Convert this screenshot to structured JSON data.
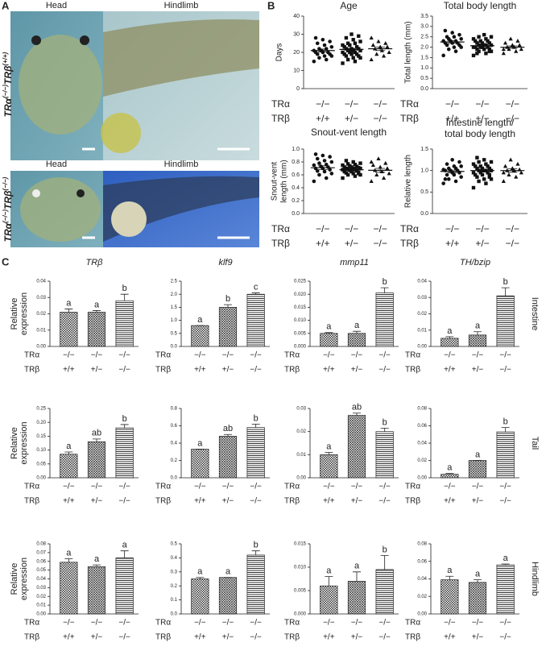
{
  "labels": {
    "a": "A",
    "b": "B",
    "c": "C"
  },
  "panel_a": {
    "rows": [
      {
        "columns": [
          "Head",
          "Hindlimb"
        ],
        "genotype": {
          "a": "TRα",
          "a_sup": "(−/−)",
          "b": "TRβ",
          "b_sup": "(+/+)"
        }
      },
      {
        "columns": [
          "Head",
          "Hindlimb"
        ],
        "genotype": {
          "a": "TRα",
          "a_sup": "(−/−)",
          "b": "TRβ",
          "b_sup": "(−/−)"
        }
      }
    ]
  },
  "panel_c": {
    "genes": [
      "TRβ",
      "klf9",
      "mmp11",
      "TH/bzip"
    ],
    "tissues": [
      "Intestine",
      "Tail",
      "Hindlimb"
    ]
  },
  "chart_data": [
    {
      "type": "dot",
      "title": "Age",
      "ylabel": "Days",
      "ylim": [
        0,
        40
      ],
      "yticks": [
        0,
        10,
        20,
        30,
        40
      ],
      "groups": [
        [
          15,
          16,
          17,
          18,
          18,
          19,
          19,
          20,
          20,
          20,
          21,
          21,
          22,
          22,
          23,
          24,
          25,
          26,
          27,
          28
        ],
        [
          14,
          15,
          16,
          17,
          17,
          18,
          18,
          19,
          19,
          19,
          20,
          20,
          20,
          21,
          21,
          21,
          22,
          22,
          22,
          23,
          23,
          24,
          24,
          25,
          25,
          26,
          27,
          28,
          29,
          30
        ],
        [
          16,
          18,
          19,
          20,
          21,
          22,
          23,
          23,
          24,
          25,
          26,
          28
        ]
      ],
      "means": [
        21,
        21.6,
        22
      ],
      "errors": [
        0.8,
        0.6,
        1.0
      ],
      "genotypes": [
        {
          "name": "TRα",
          "labels": [
            "−/−",
            "−/−",
            "−/−"
          ]
        },
        {
          "name": "TRβ",
          "labels": [
            "+/+",
            "+/−",
            "−/−"
          ]
        }
      ]
    },
    {
      "type": "dot",
      "title": "Total body length",
      "ylabel": "Total length (mm)",
      "ylim": [
        0,
        3.5
      ],
      "yticks": [
        {
          "value": 0,
          "label": "0.0"
        },
        0.5,
        {
          "value": 1,
          "label": "1.0"
        },
        1.5,
        {
          "value": 2,
          "label": "2.0"
        },
        2.5,
        {
          "value": 3,
          "label": "3.0"
        },
        3.5
      ],
      "groups": [
        [
          1.6,
          1.8,
          1.9,
          2.0,
          2.0,
          2.1,
          2.1,
          2.2,
          2.2,
          2.2,
          2.3,
          2.3,
          2.3,
          2.4,
          2.4,
          2.5,
          2.5,
          2.6,
          2.7,
          2.8
        ],
        [
          1.6,
          1.7,
          1.8,
          1.8,
          1.9,
          1.9,
          1.9,
          2.0,
          2.0,
          2.0,
          2.0,
          2.0,
          2.1,
          2.1,
          2.1,
          2.1,
          2.2,
          2.2,
          2.2,
          2.3,
          2.3,
          2.3,
          2.4,
          2.4,
          2.5,
          2.5,
          2.6,
          1.7,
          1.8,
          2.0
        ],
        [
          1.7,
          1.8,
          1.9,
          1.9,
          2.0,
          2.0,
          2.1,
          2.1,
          2.2,
          2.3,
          2.4,
          1.9
        ]
      ],
      "means": [
        2.25,
        2.07,
        2.0
      ],
      "errors": [
        0.07,
        0.04,
        0.06
      ],
      "genotypes": [
        {
          "name": "TRα",
          "labels": [
            "−/−",
            "−/−",
            "−/−"
          ]
        },
        {
          "name": "TRβ",
          "labels": [
            "+/+",
            "+/−",
            "−/−"
          ]
        }
      ]
    },
    {
      "type": "dot",
      "title": "Snout-vent length",
      "ylabel": [
        "Snout-vent",
        "length (mm)"
      ],
      "ylim": [
        0,
        1.0
      ],
      "yticks": [
        {
          "value": 0,
          "label": "0.0"
        },
        0.2,
        0.4,
        0.6,
        0.8,
        {
          "value": 1,
          "label": "1.0"
        }
      ],
      "groups": [
        [
          0.5,
          0.55,
          0.6,
          0.62,
          0.65,
          0.66,
          0.68,
          0.7,
          0.7,
          0.72,
          0.73,
          0.75,
          0.76,
          0.78,
          0.8,
          0.82,
          0.85,
          0.88,
          0.9,
          0.92
        ],
        [
          0.55,
          0.58,
          0.6,
          0.6,
          0.62,
          0.63,
          0.64,
          0.65,
          0.65,
          0.66,
          0.67,
          0.68,
          0.68,
          0.69,
          0.7,
          0.7,
          0.7,
          0.71,
          0.72,
          0.72,
          0.73,
          0.74,
          0.75,
          0.76,
          0.77,
          0.78,
          0.8,
          0.82,
          0.62,
          0.66
        ],
        [
          0.5,
          0.55,
          0.6,
          0.62,
          0.65,
          0.67,
          0.7,
          0.72,
          0.75,
          0.78,
          0.85,
          0.8
        ]
      ],
      "means": [
        0.71,
        0.68,
        0.67
      ],
      "errors": [
        0.03,
        0.01,
        0.03
      ],
      "genotypes": [
        {
          "name": "TRα",
          "labels": [
            "−/−",
            "−/−",
            "−/−"
          ]
        },
        {
          "name": "TRβ",
          "labels": [
            "+/+",
            "+/−",
            "−/−"
          ]
        }
      ]
    },
    {
      "type": "dot",
      "title": [
        "Intestine length/",
        "total body length"
      ],
      "ylabel": "Relative length",
      "ylim": [
        0,
        1.5
      ],
      "yticks": [
        {
          "value": 0,
          "label": "0.0"
        },
        0.5,
        {
          "value": 1,
          "label": "1.0"
        },
        1.5
      ],
      "groups": [
        [
          0.7,
          0.75,
          0.8,
          0.85,
          0.9,
          0.9,
          0.95,
          0.95,
          1.0,
          1.0,
          1.0,
          1.02,
          1.05,
          1.05,
          1.1,
          1.1,
          1.15,
          1.2,
          1.25,
          0.8
        ],
        [
          0.6,
          0.7,
          0.75,
          0.8,
          0.8,
          0.85,
          0.85,
          0.9,
          0.9,
          0.95,
          0.95,
          0.95,
          1.0,
          1.0,
          1.0,
          1.0,
          1.05,
          1.05,
          1.05,
          1.1,
          1.1,
          1.1,
          1.15,
          1.15,
          1.2,
          1.2,
          1.25,
          1.3,
          0.9,
          1.0
        ],
        [
          0.75,
          0.85,
          0.9,
          0.95,
          1.0,
          1.0,
          1.02,
          1.05,
          1.1,
          1.15,
          1.25,
          0.95
        ]
      ],
      "means": [
        0.98,
        1.0,
        1.0
      ],
      "errors": [
        0.03,
        0.03,
        0.04
      ],
      "genotypes": [
        {
          "name": "TRα",
          "labels": [
            "−/−",
            "−/−",
            "−/−"
          ]
        },
        {
          "name": "TRβ",
          "labels": [
            "+/+",
            "+/−",
            "−/−"
          ]
        }
      ]
    },
    {
      "type": "bar",
      "ylabel": [
        "Relative",
        "expression"
      ],
      "ylim": [
        0,
        0.04
      ],
      "yticks": [
        {
          "value": 0,
          "label": "0.00"
        },
        0.01,
        0.02,
        0.03,
        0.04
      ],
      "values": [
        0.021,
        0.021,
        0.028
      ],
      "errors": [
        0.002,
        0.001,
        0.004
      ],
      "letters": [
        "a",
        "a",
        "b"
      ],
      "genotypes": [
        {
          "name": "TRα",
          "labels": [
            "−/−",
            "−/−",
            "−/−"
          ]
        },
        {
          "name": "TRβ",
          "labels": [
            "+/+",
            "+/−",
            "−/−"
          ]
        }
      ]
    },
    {
      "type": "bar",
      "ylim": [
        0,
        2.5
      ],
      "yticks": [
        {
          "value": 0,
          "label": "0.0"
        },
        0.5,
        {
          "value": 1,
          "label": "1.0"
        },
        1.5,
        {
          "value": 2,
          "label": "2.0"
        },
        2.5
      ],
      "values": [
        0.8,
        1.5,
        2.0
      ],
      "errors": [
        0,
        0.1,
        0.05
      ],
      "letters": [
        "a",
        "b",
        "c"
      ],
      "genotypes": [
        {
          "name": "TRα",
          "labels": [
            "−/−",
            "−/−",
            "−/−"
          ]
        },
        {
          "name": "TRβ",
          "labels": [
            "+/+",
            "+/−",
            "−/−"
          ]
        }
      ]
    },
    {
      "type": "bar",
      "ylim": [
        0,
        0.025
      ],
      "yticks": [
        {
          "value": 0,
          "label": "0.000"
        },
        0.005,
        {
          "value": 0.01,
          "label": "0.010"
        },
        0.015,
        {
          "value": 0.02,
          "label": "0.020"
        },
        0.025
      ],
      "values": [
        0.005,
        0.005,
        0.0205
      ],
      "errors": [
        0.0003,
        0.0008,
        0.002
      ],
      "letters": [
        "a",
        "a",
        "b"
      ],
      "genotypes": [
        {
          "name": "TRα",
          "labels": [
            "−/−",
            "−/−",
            "−/−"
          ]
        },
        {
          "name": "TRβ",
          "labels": [
            "+/+",
            "+/−",
            "−/−"
          ]
        }
      ]
    },
    {
      "type": "bar",
      "ylim": [
        0,
        0.04
      ],
      "yticks": [
        {
          "value": 0,
          "label": "0.00"
        },
        0.01,
        0.02,
        0.03,
        0.04
      ],
      "values": [
        0.005,
        0.007,
        0.031
      ],
      "errors": [
        0.001,
        0.002,
        0.005
      ],
      "letters": [
        "a",
        "a",
        "b"
      ],
      "genotypes": [
        {
          "name": "TRα",
          "labels": [
            "−/−",
            "−/−",
            "−/−"
          ]
        },
        {
          "name": "TRβ",
          "labels": [
            "+/+",
            "+/−",
            "−/−"
          ]
        }
      ]
    },
    {
      "type": "bar",
      "ylabel": [
        "Relative",
        "expression"
      ],
      "ylim": [
        0,
        0.25
      ],
      "yticks": [
        {
          "value": 0,
          "label": "0.00"
        },
        0.05,
        {
          "value": 0.1,
          "label": "0.10"
        },
        0.15,
        {
          "value": 0.2,
          "label": "0.20"
        },
        0.25
      ],
      "values": [
        0.085,
        0.13,
        0.18
      ],
      "errors": [
        0.008,
        0.01,
        0.012
      ],
      "letters": [
        "a",
        "ab",
        "b"
      ],
      "genotypes": [
        {
          "name": "TRα",
          "labels": [
            "−/−",
            "−/−",
            "−/−"
          ]
        },
        {
          "name": "TRβ",
          "labels": [
            "+/+",
            "+/−",
            "−/−"
          ]
        }
      ]
    },
    {
      "type": "bar",
      "ylim": [
        0,
        0.8
      ],
      "yticks": [
        {
          "value": 0,
          "label": "0.0"
        },
        0.2,
        0.4,
        0.6,
        0.8
      ],
      "values": [
        0.33,
        0.48,
        0.58
      ],
      "errors": [
        0,
        0.02,
        0.04
      ],
      "letters": [
        "a",
        "ab",
        "b"
      ],
      "genotypes": [
        {
          "name": "TRα",
          "labels": [
            "−/−",
            "−/−",
            "−/−"
          ]
        },
        {
          "name": "TRβ",
          "labels": [
            "+/+",
            "+/−",
            "−/−"
          ]
        }
      ]
    },
    {
      "type": "bar",
      "ylim": [
        0,
        0.03
      ],
      "yticks": [
        {
          "value": 0,
          "label": "0.00"
        },
        0.01,
        0.02,
        0.03
      ],
      "values": [
        0.01,
        0.027,
        0.02
      ],
      "errors": [
        0.001,
        0.001,
        0.0015
      ],
      "letters": [
        "a",
        "ab",
        "b"
      ],
      "genotypes": [
        {
          "name": "TRα",
          "labels": [
            "−/−",
            "−/−",
            "−/−"
          ]
        },
        {
          "name": "TRβ",
          "labels": [
            "+/+",
            "+/−",
            "−/−"
          ]
        }
      ]
    },
    {
      "type": "bar",
      "ylim": [
        0,
        0.08
      ],
      "yticks": [
        {
          "value": 0,
          "label": "0.00"
        },
        0.02,
        0.04,
        0.06,
        0.08
      ],
      "values": [
        0.004,
        0.02,
        0.053
      ],
      "errors": [
        0.001,
        0,
        0.005
      ],
      "letters": [
        "a",
        "a",
        "b"
      ],
      "genotypes": [
        {
          "name": "TRα",
          "labels": [
            "−/−",
            "−/−",
            "−/−"
          ]
        },
        {
          "name": "TRβ",
          "labels": [
            "+/+",
            "+/−",
            "−/−"
          ]
        }
      ]
    },
    {
      "type": "bar",
      "ylabel": [
        "Relative",
        "expression"
      ],
      "ylim": [
        0,
        0.08
      ],
      "yticks": [
        {
          "value": 0,
          "label": "0.00"
        },
        0.01,
        0.02,
        0.03,
        0.04,
        0.05,
        0.06,
        0.07,
        0.08
      ],
      "values": [
        0.059,
        0.054,
        0.064
      ],
      "errors": [
        0.004,
        0.002,
        0.008
      ],
      "letters": [
        "a",
        "a",
        "a"
      ],
      "genotypes": [
        {
          "name": "TRα",
          "labels": [
            "−/−",
            "−/−",
            "−/−"
          ]
        },
        {
          "name": "TRβ",
          "labels": [
            "+/+",
            "+/−",
            "−/−"
          ]
        }
      ]
    },
    {
      "type": "bar",
      "ylim": [
        0,
        0.5
      ],
      "yticks": [
        {
          "value": 0,
          "label": "0.0"
        },
        0.1,
        0.2,
        0.3,
        0.4,
        0.5
      ],
      "values": [
        0.25,
        0.26,
        0.42
      ],
      "errors": [
        0.01,
        0,
        0.03
      ],
      "letters": [
        "a",
        "a",
        "b"
      ],
      "genotypes": [
        {
          "name": "TRα",
          "labels": [
            "−/−",
            "−/−",
            "−/−"
          ]
        },
        {
          "name": "TRβ",
          "labels": [
            "+/+",
            "+/−",
            "−/−"
          ]
        }
      ]
    },
    {
      "type": "bar",
      "ylim": [
        0,
        0.015
      ],
      "yticks": [
        {
          "value": 0,
          "label": "0.000"
        },
        0.005,
        {
          "value": 0.01,
          "label": "0.010"
        },
        0.015
      ],
      "values": [
        0.006,
        0.007,
        0.0095
      ],
      "errors": [
        0.002,
        0.002,
        0.003
      ],
      "letters": [
        "a",
        "a",
        "b"
      ],
      "genotypes": [
        {
          "name": "TRα",
          "labels": [
            "−/−",
            "−/−",
            "−/−"
          ]
        },
        {
          "name": "TRβ",
          "labels": [
            "+/+",
            "+/−",
            "−/−"
          ]
        }
      ]
    },
    {
      "type": "bar",
      "ylim": [
        0,
        0.08
      ],
      "yticks": [
        {
          "value": 0,
          "label": "0.00"
        },
        0.02,
        0.04,
        0.06,
        0.08
      ],
      "values": [
        0.039,
        0.036,
        0.056
      ],
      "errors": [
        0.004,
        0.003,
        0.001
      ],
      "letters": [
        "a",
        "a",
        "a"
      ],
      "genotypes": [
        {
          "name": "TRα",
          "labels": [
            "−/−",
            "−/−",
            "−/−"
          ]
        },
        {
          "name": "TRβ",
          "labels": [
            "+/+",
            "+/−",
            "−/−"
          ]
        }
      ]
    }
  ]
}
